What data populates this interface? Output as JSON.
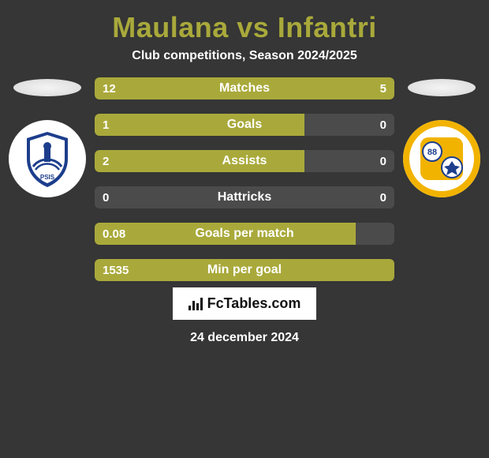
{
  "title_color": "#a9a93b",
  "title": "Maulana vs Infantri",
  "subtitle": "Club competitions, Season 2024/2025",
  "olive": "#a9a93b",
  "track": "#4a4b4a",
  "left_crest": {
    "primary": "#1c3e8c",
    "secondary": "#ffffff",
    "label": "PSIS"
  },
  "right_crest": {
    "ring": "#f2b300",
    "badge_bg": "#1c3e8c",
    "badge_text": "88"
  },
  "stats": [
    {
      "label": "Matches",
      "left_val": "12",
      "right_val": "5",
      "left_pct": 70,
      "right_pct": 30
    },
    {
      "label": "Goals",
      "left_val": "1",
      "right_val": "0",
      "left_pct": 70,
      "right_pct": 0
    },
    {
      "label": "Assists",
      "left_val": "2",
      "right_val": "0",
      "left_pct": 70,
      "right_pct": 0
    },
    {
      "label": "Hattricks",
      "left_val": "0",
      "right_val": "0",
      "left_pct": 0,
      "right_pct": 0
    },
    {
      "label": "Goals per match",
      "left_val": "0.08",
      "right_val": "",
      "left_pct": 87,
      "right_pct": 0,
      "center_left": true
    },
    {
      "label": "Min per goal",
      "left_val": "1535",
      "right_val": "",
      "left_pct": 100,
      "right_pct": 0,
      "center_left": true
    }
  ],
  "brand": "FcTables.com",
  "date": "24 december 2024"
}
